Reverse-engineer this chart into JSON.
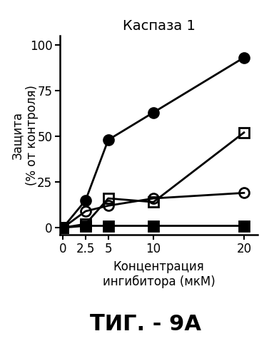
{
  "title": "Каспаза 1",
  "xlabel_line1": "Концентрация",
  "xlabel_line2": "ингибитора (мкМ)",
  "ylabel_top": "Защита",
  "ylabel_bottom": "(% от контроля)",
  "x": [
    0,
    2.5,
    5,
    10,
    20
  ],
  "series": [
    {
      "label": "filled_circle",
      "y": [
        0,
        15,
        48,
        63,
        93
      ],
      "marker": "o",
      "fillstyle": "full",
      "color": "black",
      "markersize": 10,
      "linewidth": 2.0
    },
    {
      "label": "open_square",
      "y": [
        0,
        2,
        16,
        14,
        52
      ],
      "marker": "s",
      "fillstyle": "none",
      "color": "black",
      "markersize": 10,
      "linewidth": 2.0
    },
    {
      "label": "open_circle",
      "y": [
        0,
        9,
        12,
        16,
        19
      ],
      "marker": "o",
      "fillstyle": "none",
      "color": "black",
      "markersize": 10,
      "linewidth": 2.0
    },
    {
      "label": "filled_square",
      "y": [
        0,
        1,
        1,
        1,
        1
      ],
      "marker": "s",
      "fillstyle": "full",
      "color": "black",
      "markersize": 10,
      "linewidth": 2.0
    }
  ],
  "xlim": [
    -0.3,
    21.5
  ],
  "ylim": [
    -4,
    105
  ],
  "yticks": [
    0,
    25,
    50,
    75,
    100
  ],
  "xticks": [
    0,
    2.5,
    5,
    10,
    20
  ],
  "xtick_labels": [
    "0",
    "2.5",
    "5",
    "10",
    "20"
  ],
  "ytick_labels": [
    "0",
    "25",
    "50",
    "75",
    "100"
  ],
  "fig_width": 3.84,
  "fig_height": 4.99,
  "dpi": 100,
  "caption": "ΤИГ. - 9А",
  "caption_fontsize": 22
}
